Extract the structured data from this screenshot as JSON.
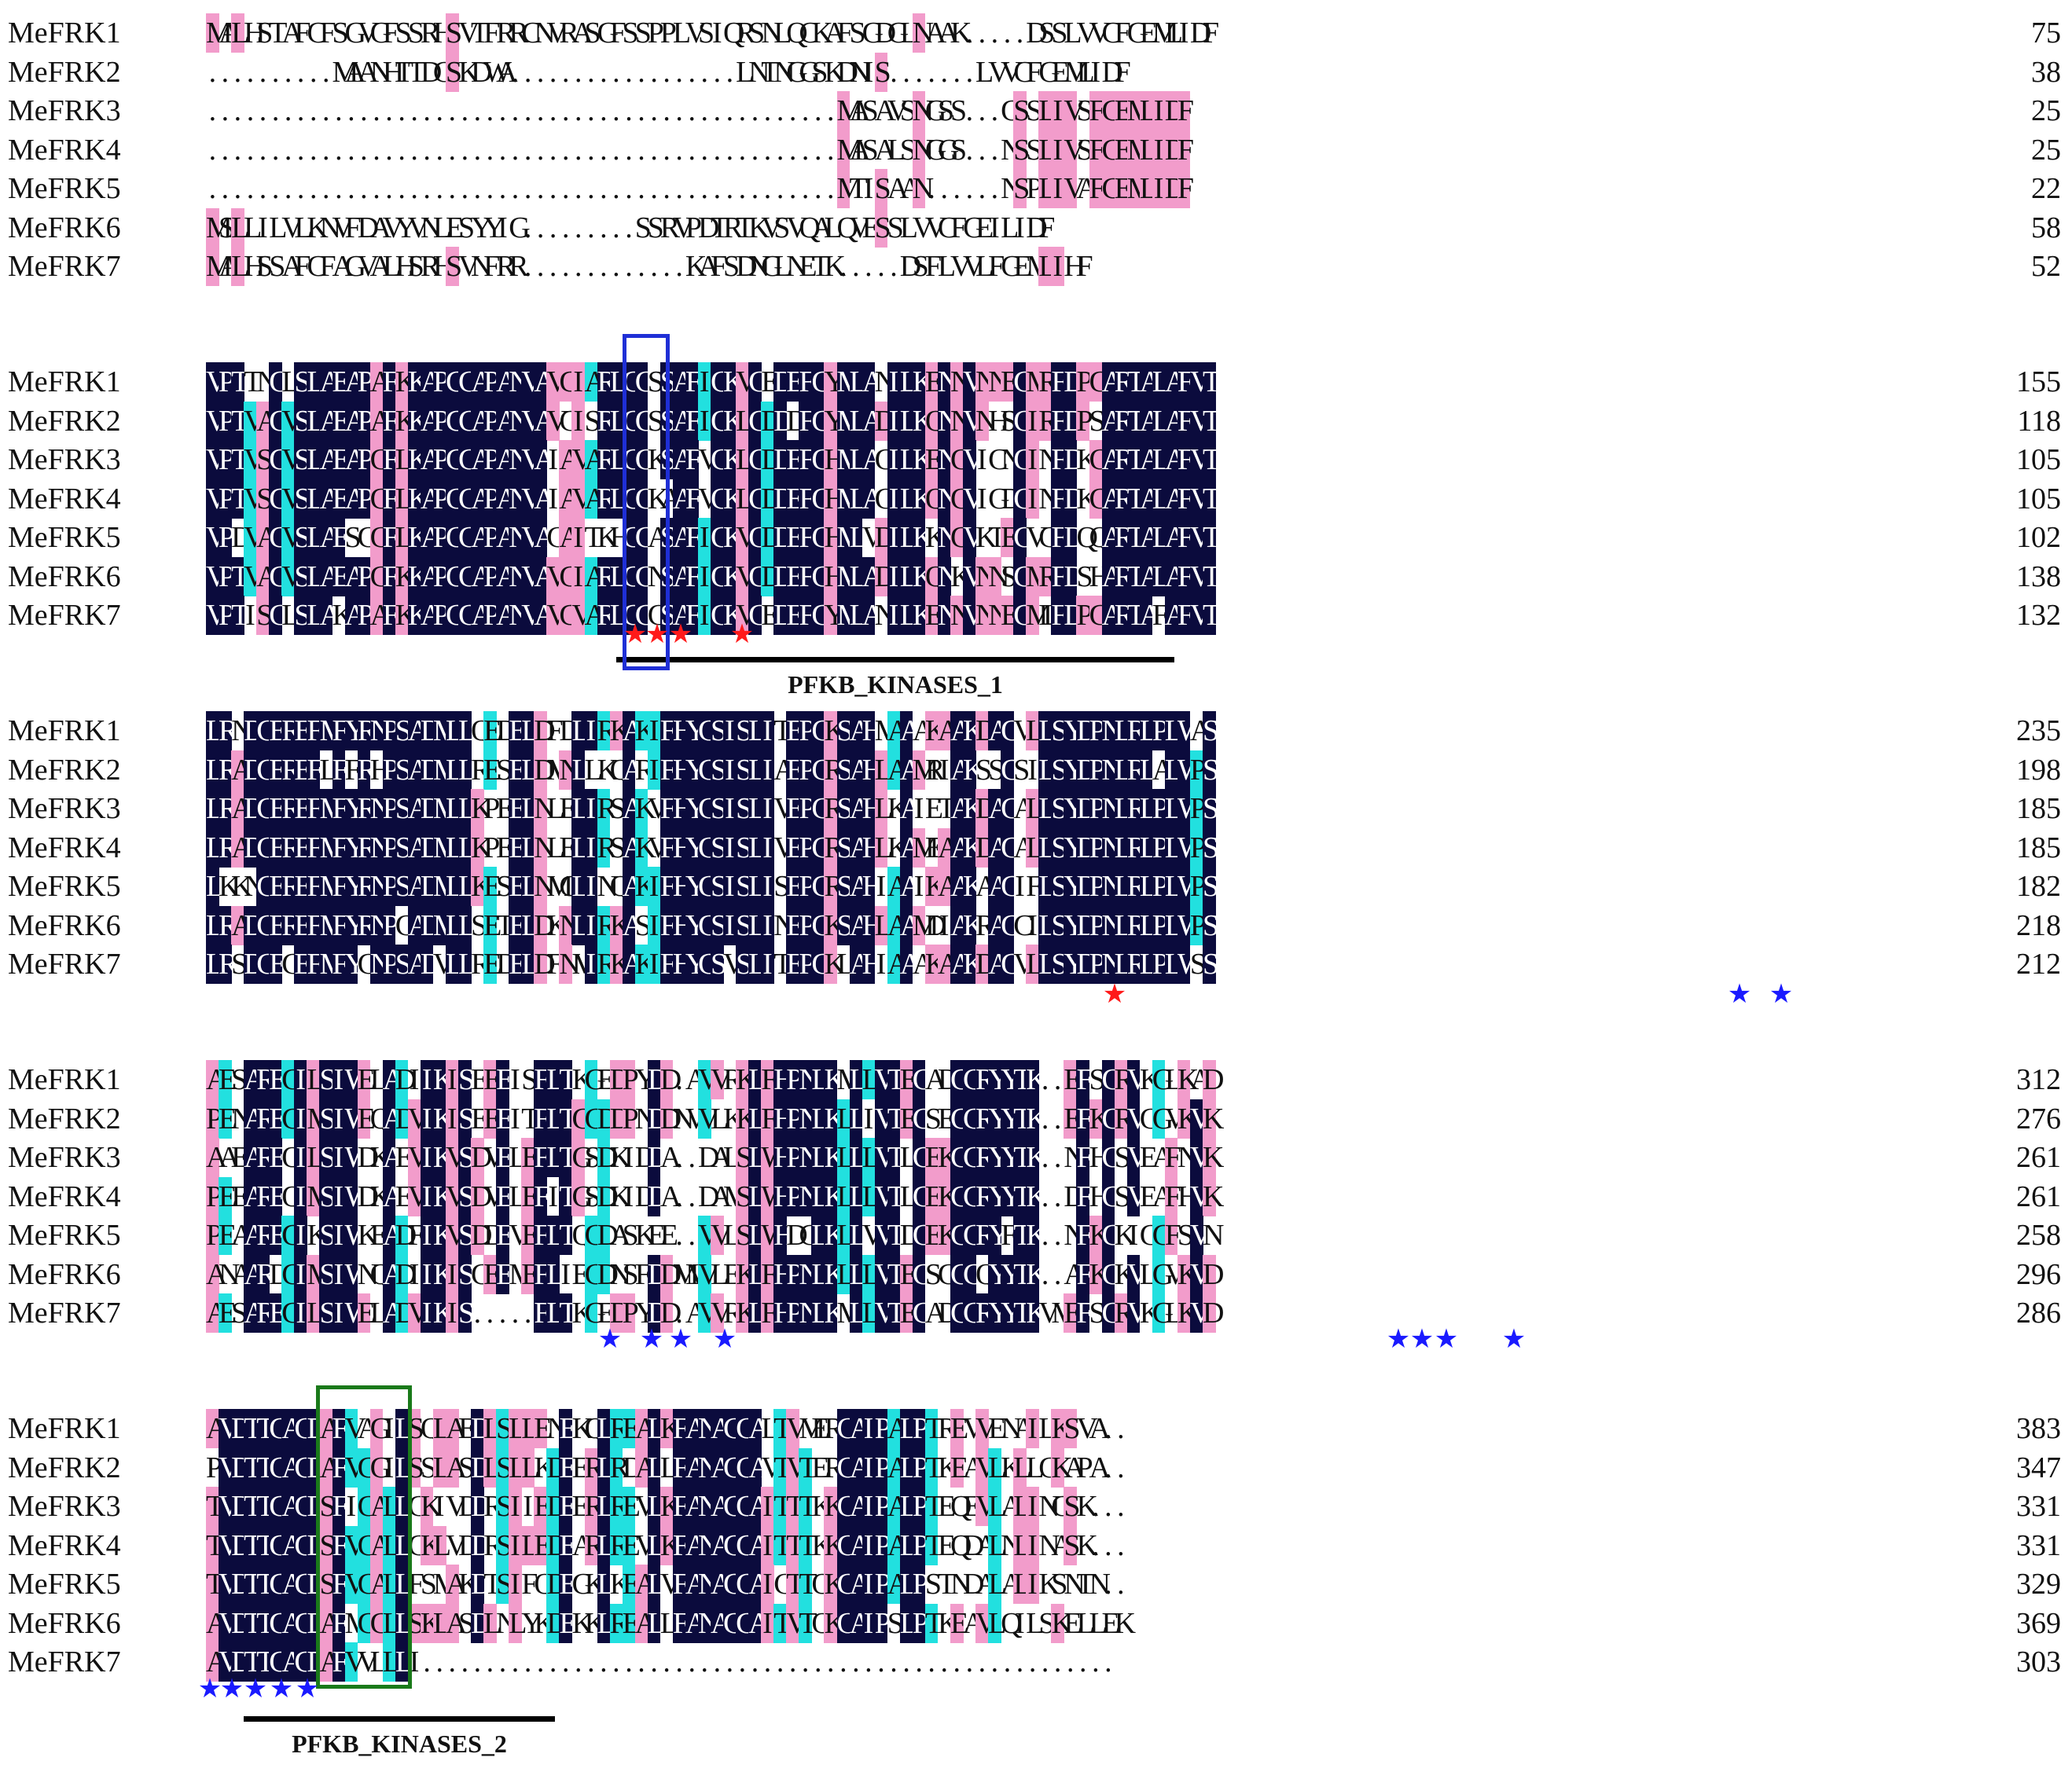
{
  "colors": {
    "identical": "#0b0b3d",
    "high_similarity": "#22e0df",
    "partial_similarity": "#f29ccb",
    "binding_star_red": "#ff1a1a",
    "binding_star_blue": "#1a1aff",
    "motif_box_1": "#1f2fd6",
    "motif_box_2": "#1a7a1a"
  },
  "blocks": [
    {
      "rows": [
        {
          "name": "MeFRK1",
          "seq": "MALHSTAFCFSGVGFSSRHSVTFRRCNVRASGFSSPPLVSIQRSNLQCKAFSGDGLNAAK.....DSSLVVCFGEMLIDF",
          "pos": "75"
        },
        {
          "name": "MeFRK2",
          "seq": "..........MAANHTTDGSKDWA..................LNTNGGSKDNIS.......LVVCFGEMLIDF",
          "pos": "38"
        },
        {
          "name": "MeFRK3",
          "seq": "..................................................MASAVSNGSS...GSSLIVSFGEMLIDF",
          "pos": "25"
        },
        {
          "name": "MeFRK4",
          "seq": "..................................................MASALSNGGS...NSSLIVSFGEMLIDF",
          "pos": "25"
        },
        {
          "name": "MeFRK5",
          "seq": "..................................................MTISAAN......NSPLIVAFGEMLIDF",
          "pos": "22"
        },
        {
          "name": "MeFRK6",
          "seq": "MSLLILVLKNVFDAVYVNLESYYIG.........SSRVPDTRTKVSVQALQVESSLVVCFGEILIDF",
          "pos": "58"
        },
        {
          "name": "MeFRK7",
          "seq": "MALHSSAFCFAGVALHSRHSVNFRR.............KAFSDNGLNETK.....DSFLVVLFGEMLIHF",
          "pos": "52"
        }
      ]
    },
    {
      "rows": [
        {
          "name": "MeFRK1",
          "seq": "VPTTNGLSLAEAPAFKKAPGGAPANVAVGIARLGGSSAFIGKVGEDEFGYMLANILKENNVNNEGMRFDPGARTALAFVT",
          "pos": "155"
        },
        {
          "name": "MeFRK2",
          "seq": "VPTVAGVSLAEAPAFKKAPGGAPANVAVCISRLGGSSAFIGKLGDDDFGYMLADILKQNNVNHSGIRFDPSARTALAFVT",
          "pos": "118"
        },
        {
          "name": "MeFRK3",
          "seq": "VPTVSGVSLAEAPGFLKAPGGAPANVAIAVARLGGKSAFVGKLGDDEFGHMLAGILKENGVICNGINFDKGARTALAFVT",
          "pos": "105"
        },
        {
          "name": "MeFRK4",
          "seq": "VPTVSGVSLAEAPGFLKAPGGAPANVAIAVARLGGKAAFVGKLGDDEFGHMLAGILKQNGVIGDGINFDKGARTALAFVT",
          "pos": "105"
        },
        {
          "name": "MeFRK5",
          "seq": "VPDVAGVSLAESGGFLKAPGGAPANVACAITKHGGASAFIGKVGDDEFGHMLVDILKKNGVKTEGVCFDQQARTALAFVT",
          "pos": "102"
        },
        {
          "name": "MeFRK6",
          "seq": "VPTVAGVSLAEAPGFKKAPGGAPANVAVGIARLGGNSAFIGKVGDDEFGHMLADILKQNKVNNSGMRFDSHARTALAFVT",
          "pos": "138"
        },
        {
          "name": "MeFRK7",
          "seq": "VPTISGLSLAKAPAFKKAPGGAPANVAVGVARLGGCSAFIGKVGEDEFGYMLANILKENNVNNEGMLFDPGARTAFAFVT",
          "pos": "132"
        }
      ],
      "domain_label": "PFKB_KINASES_1"
    },
    {
      "rows": [
        {
          "name": "MeFRK1",
          "seq": "LRNDGEREFMFYRNPSADMLLQEDELDFDLIRKAKIFHYGSISLITEPCKSAHMAAAKAAKDAGVLLSYDPNLRLPLWAS",
          "pos": "235"
        },
        {
          "name": "MeFRK2",
          "seq": "LRADGEREFLFFRHPSADMLLRESELDMNLLKQARIFHYGSISLIAEPCRSAHLAAMRIAKSSGSILSYDPNLRLALWPS",
          "pos": "198"
        },
        {
          "name": "MeFRK3",
          "seq": "LRADGEREFMFYRNPSADMLLKPEELNLELIRSAKVFHYGSISLIVEPCRSAHLKAIETAKDAGALLSYDPNLRLPLWPS",
          "pos": "185"
        },
        {
          "name": "MeFRK4",
          "seq": "LRADGEREFMFYRNPSADMLLKPEELNLELIRSAKVFHYGSISLIVEPCRSAHLKAMEAAKDAGALLSYDPNLRLPLWPS",
          "pos": "185"
        },
        {
          "name": "MeFRK5",
          "seq": "LKKNGEREFMFYRNPSADMLLKESELNMGLINQAKIFHYGSISLISEPCRSAHIAAIKAAKAAGIFLSYDPNLRLPLWPS",
          "pos": "182"
        },
        {
          "name": "MeFRK6",
          "seq": "LRADGEREFMFYRNPCADMLLSETELDKNLIRKASIFHYGSISLINEPCKSAHLAAMDIAKRAGCILSYDPNLRLPLWPS",
          "pos": "218"
        },
        {
          "name": "MeFRK7",
          "seq": "LRSDGECEFMFYCNPSADVLLREDELDFNMIRKAKIFHYGSVSLITEPCKLAHIAAAKAAKDAGVLLSYDPNLRLPLWSS",
          "pos": "212"
        }
      ]
    },
    {
      "rows": [
        {
          "name": "MeFRK1",
          "seq": "AESAREGILSIWELADIIKISEEEISFLTKGEDPYDD.AVVRKLFHPNLKMLLVTEGADGCRYYTK..EFSGRVKGLKAD",
          "pos": "312"
        },
        {
          "name": "MeFRK2",
          "seq": "PENAREGIMSIWEQADVIKISEEEITFLTGGDDPNDDNVVLKKLFHPNLKLLIVTEGSEGCRYYTK..EFKGRVGGVKVK",
          "pos": "276"
        },
        {
          "name": "MeFRK3",
          "seq": "AAEAREQILSIWDKAEVIKVSDVELEFLTGSDKIDDA..DALSLWHPNLKLLLVTLGEKGCRYYTK..NFHGSVEAFNVK",
          "pos": "261"
        },
        {
          "name": "MeFRK4",
          "seq": "PEEAREQIMSIWDKAEVIKVSDVELEFITGSDKIDDA..DAMSLWHPNLKLLLVTLGEKGCRYYTK..DFHGSVEAFHVK",
          "pos": "261"
        },
        {
          "name": "MeFRK5",
          "seq": "PEAAREGIKSIWKEADFIKVSDDEVEFLTQGDASKEE..VVLSLWHDGLKLLVVTDGEKGCRYFTK..NFKGKIGGFSVN",
          "pos": "258"
        },
        {
          "name": "MeFRK6",
          "seq": "ANAARDGIMSIWNQADIIKISGEEMEFLIEGDNSFDDMMVLEKLFHPNLKLLLVTEGSGGCQYYTK..AFKGKVLGVKVD",
          "pos": "296"
        },
        {
          "name": "MeFRK7",
          "seq": "AESAREGILSIWELADVIKIS.....FLTKGEDPYDD.AVVRKLFHPNLKMLLVTEGADGCRYYTKVMEFSGRVKGLKVD",
          "pos": "286"
        }
      ]
    },
    {
      "rows": [
        {
          "name": "MeFRK1",
          "seq": "AVDTTGAGDAFVAGILSQLAEDLSLLENEKQLREALKFANACGALTVMERGAIPALPTREVVENAILKSVA..",
          "pos": "383"
        },
        {
          "name": "MeFRK2",
          "seq": "PVDTTGAGDAFVGGILSSLASDLSLLKDEERLRDALLFANACGAVTVTERGAIPALPTKEAVLKLLGKAPA..",
          "pos": "347"
        },
        {
          "name": "MeFRK3",
          "seq": "TVDTTGAGDSFIGALLCKIVDDRSIIEDEERLREVLKFANACGAITTTKKGAIPALPTEQEVLALINGSK...",
          "pos": "331"
        },
        {
          "name": "MeFRK4",
          "seq": "TVDTTGAGDSFVGALLCKLVDDRSILEDEARLREVLKFANACGAITTTKKGAIPALPTEQDALNLINASK...",
          "pos": "331"
        },
        {
          "name": "MeFRK5",
          "seq": "TVDTTGAGDSFVGALLFSMAKDTSIFQDEGKLKEALVFANACGAICTTQKGAIPALPSTNDALALIKSNTN..",
          "pos": "329"
        },
        {
          "name": "MeFRK6",
          "seq": "AVDTTGAGDAFMGGLLSKLASDLNLYKDEKKLREALLFANACGAITVTQKGAIPSLPTKEAVLQILSKELLEK",
          "pos": "369"
        },
        {
          "name": "MeFRK7",
          "seq": "AVDTTGAGDAFVVLLLI.......................................................",
          "pos": "303"
        }
      ],
      "domain_label": "PFKB_KINASES_2"
    }
  ]
}
